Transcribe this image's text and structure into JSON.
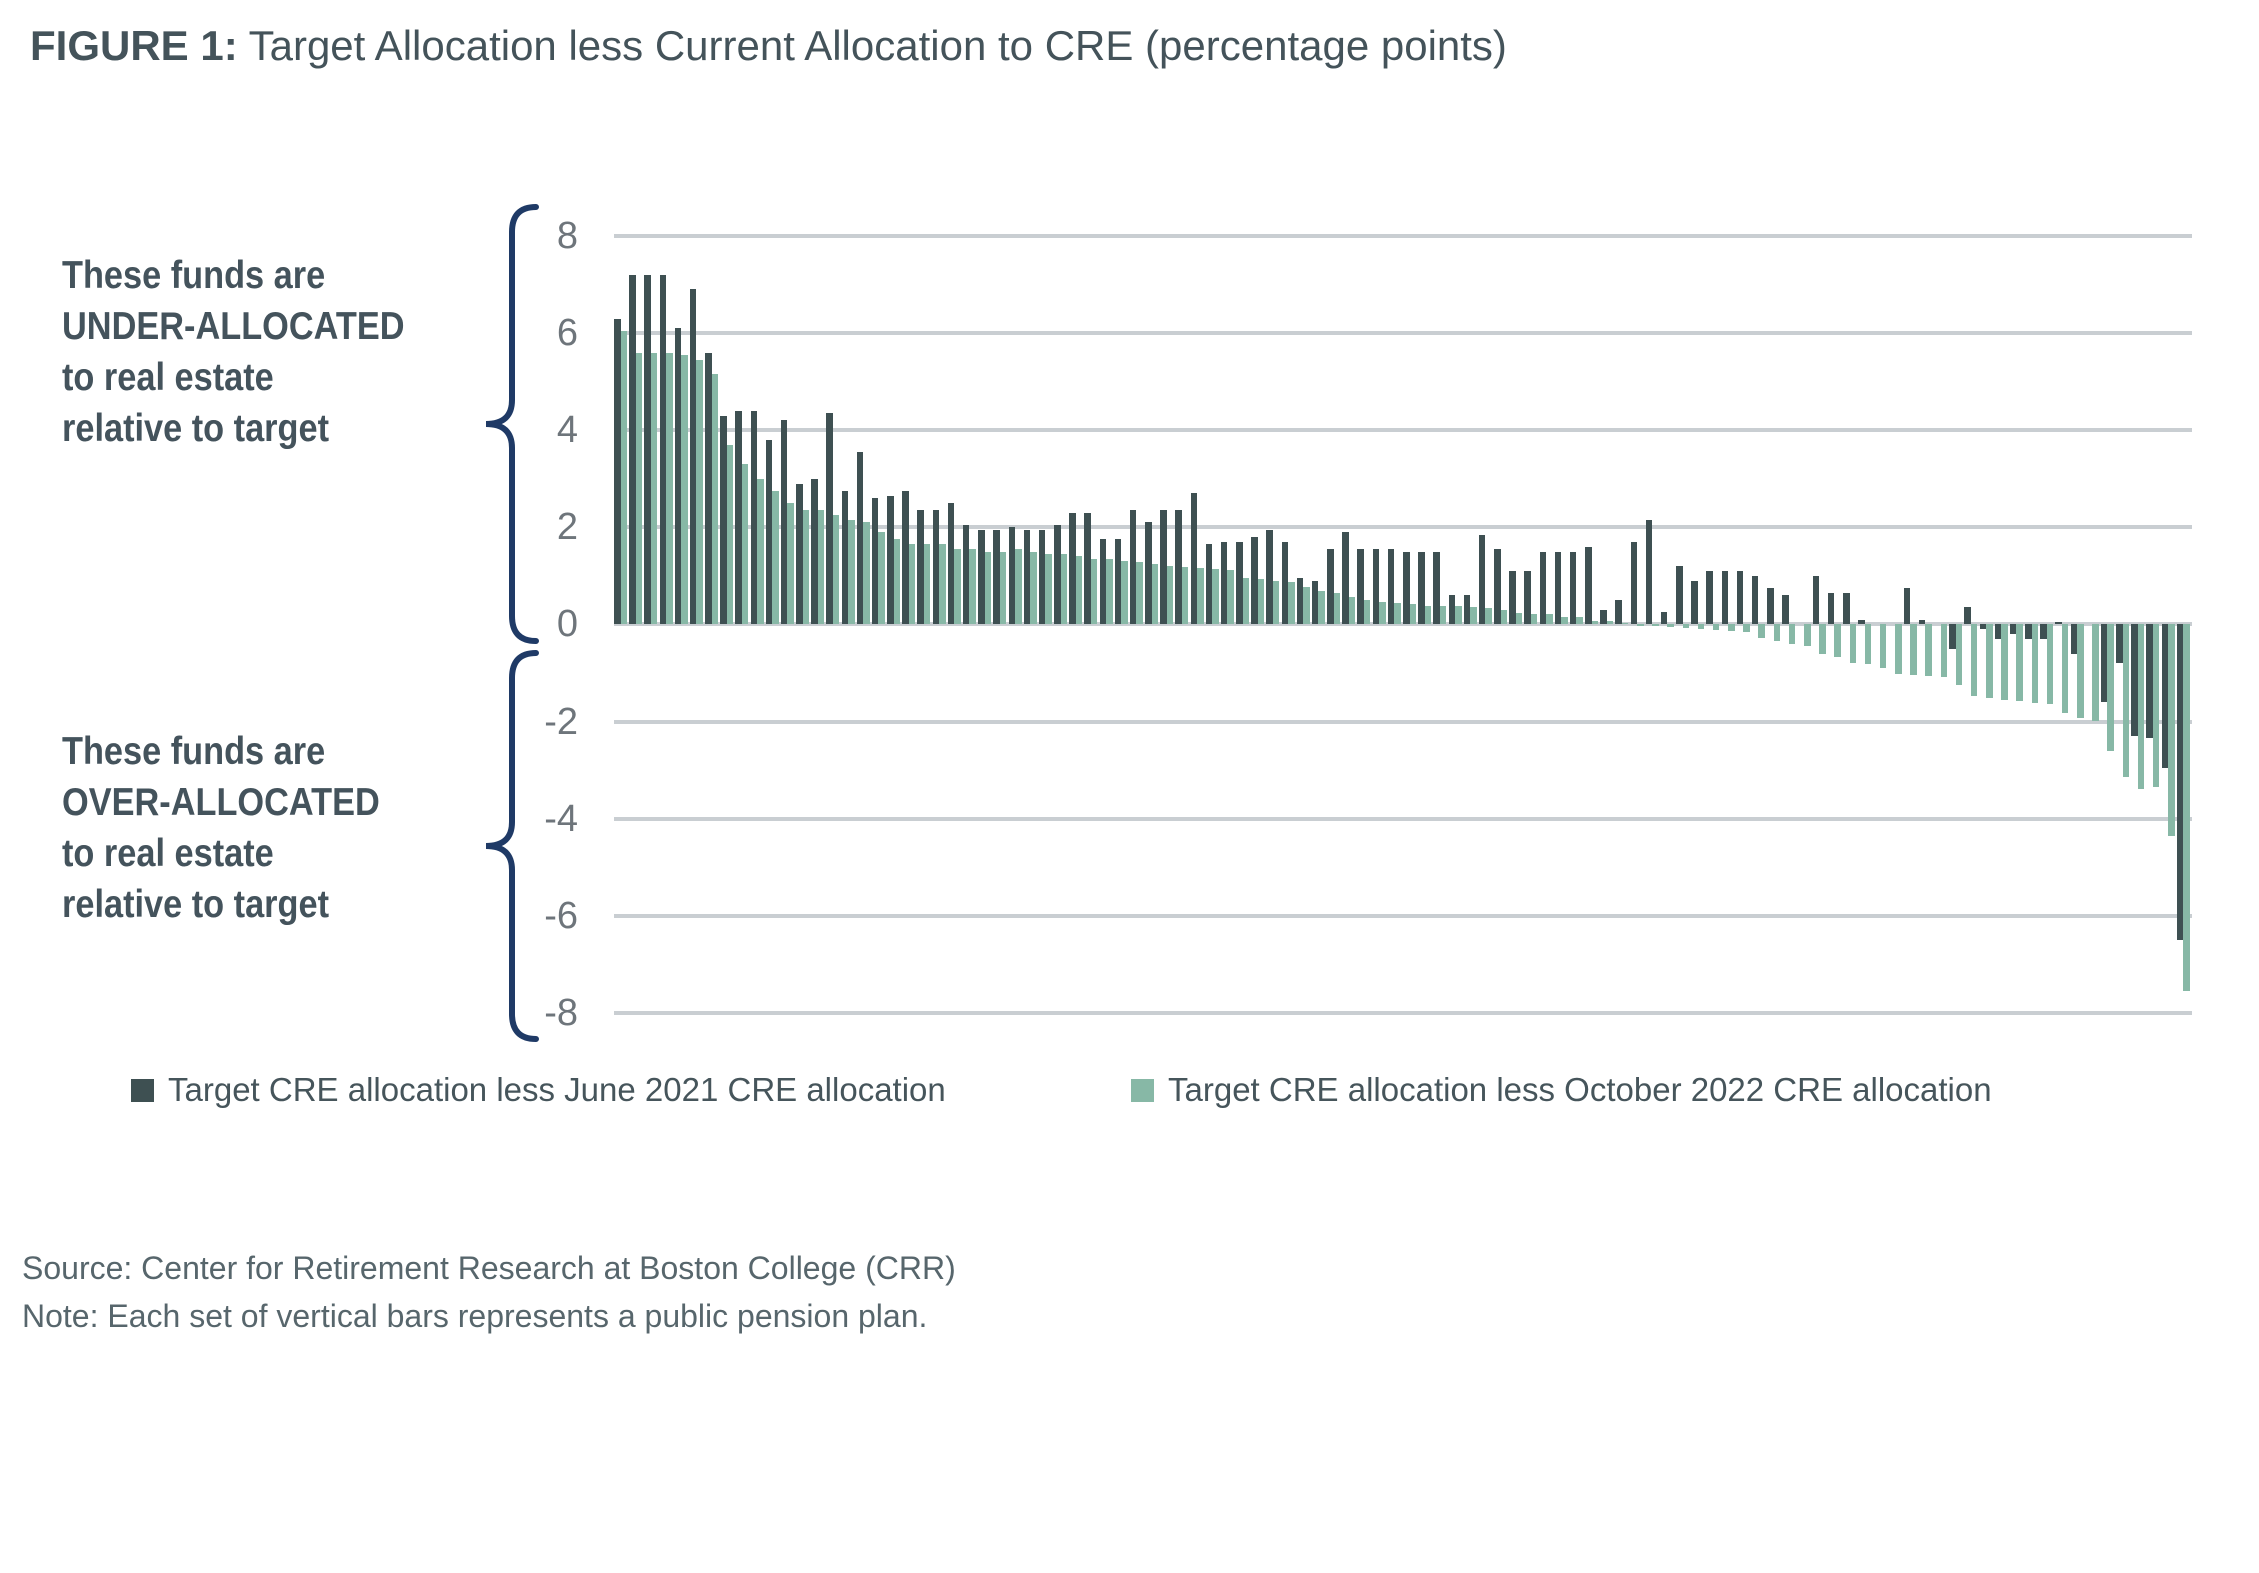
{
  "title": {
    "prefix": "FIGURE 1:",
    "text": " Target Allocation less Current Allocation to CRE (percentage points)"
  },
  "annotations": {
    "upper": {
      "lines": [
        "These funds are",
        "UNDER-ALLOCATED",
        "to real estate",
        "relative to target"
      ]
    },
    "lower": {
      "lines": [
        "These funds are",
        "OVER-ALLOCATED",
        "to real estate",
        "relative to target"
      ]
    }
  },
  "legend": [
    {
      "label": "Target CRE allocation less June 2021 CRE allocation",
      "color": "#3E5052"
    },
    {
      "label": "Target CRE allocation less October 2022 CRE allocation",
      "color": "#87B8A6"
    }
  ],
  "source": "Source: Center for Retirement Research at Boston College (CRR)",
  "note": "Note: Each set of vertical bars represents a public pension plan.",
  "colors": {
    "title_text": "#44535A",
    "annotation_text": "#44535C",
    "brace": "#1F3A66",
    "axis_label": "#6E757B",
    "gridline": "#C9CED2",
    "series_june_2021": "#3E5052",
    "series_october_2022": "#87B8A6",
    "footnote_text": "#57666C"
  },
  "chart_data": {
    "type": "bar",
    "title": "Target Allocation less Current Allocation to CRE (percentage points)",
    "xlabel": "",
    "ylabel": "percentage points",
    "ylim": [
      -8,
      8
    ],
    "yticks": [
      8,
      6,
      4,
      2,
      0,
      -2,
      -4,
      -6,
      -8
    ],
    "grid": true,
    "legend_position": "bottom",
    "x_axis_labels_shown": false,
    "bars_per_group": 2,
    "series": [
      {
        "name": "Target CRE allocation less June 2021 CRE allocation",
        "color": "#3E5052",
        "values": [
          6.3,
          7.2,
          7.2,
          7.2,
          6.1,
          6.9,
          5.6,
          4.3,
          4.4,
          4.4,
          3.8,
          4.2,
          2.9,
          3.0,
          4.35,
          2.75,
          3.55,
          2.6,
          2.65,
          2.75,
          2.35,
          2.35,
          2.5,
          2.05,
          1.95,
          1.95,
          2.0,
          1.95,
          1.95,
          2.05,
          2.3,
          2.3,
          1.75,
          1.75,
          2.35,
          2.1,
          2.35,
          2.35,
          2.7,
          1.65,
          1.7,
          1.7,
          1.8,
          1.95,
          1.7,
          0.95,
          0.9,
          1.55,
          1.9,
          1.55,
          1.55,
          1.55,
          1.5,
          1.5,
          1.5,
          0.6,
          0.6,
          1.85,
          1.55,
          1.1,
          1.1,
          1.5,
          1.5,
          1.5,
          1.6,
          0.3,
          0.5,
          1.7,
          2.15,
          0.25,
          1.2,
          0.9,
          1.1,
          1.1,
          1.1,
          1.0,
          0.75,
          0.6,
          0.0,
          1.0,
          0.65,
          0.65,
          0.1,
          0.0,
          0.0,
          0.75,
          0.1,
          0.0,
          -0.5,
          0.35,
          -0.1,
          -0.3,
          -0.2,
          -0.3,
          -0.3,
          0.05,
          -0.6,
          0.0,
          -1.6,
          -0.8,
          -2.3,
          -2.35,
          -2.95,
          -6.5
        ]
      },
      {
        "name": "Target CRE allocation less October 2022 CRE allocation",
        "color": "#87B8A6",
        "values": [
          6.05,
          5.6,
          5.6,
          5.6,
          5.55,
          5.45,
          5.15,
          3.7,
          3.3,
          3.0,
          2.75,
          2.5,
          2.35,
          2.35,
          2.25,
          2.15,
          2.1,
          1.9,
          1.75,
          1.65,
          1.65,
          1.65,
          1.55,
          1.55,
          1.5,
          1.5,
          1.55,
          1.5,
          1.45,
          1.45,
          1.4,
          1.35,
          1.35,
          1.3,
          1.28,
          1.25,
          1.2,
          1.18,
          1.16,
          1.15,
          1.12,
          0.95,
          0.93,
          0.9,
          0.87,
          0.77,
          0.68,
          0.65,
          0.57,
          0.51,
          0.47,
          0.45,
          0.42,
          0.38,
          0.38,
          0.37,
          0.35,
          0.33,
          0.29,
          0.23,
          0.22,
          0.22,
          0.16,
          0.16,
          0.08,
          0.06,
          0.03,
          -0.03,
          -0.04,
          -0.05,
          -0.08,
          -0.1,
          -0.11,
          -0.14,
          -0.16,
          -0.28,
          -0.35,
          -0.41,
          -0.45,
          -0.62,
          -0.67,
          -0.79,
          -0.81,
          -0.9,
          -1.03,
          -1.04,
          -1.06,
          -1.08,
          -1.25,
          -1.47,
          -1.52,
          -1.56,
          -1.57,
          -1.62,
          -1.64,
          -1.83,
          -1.92,
          -2.0,
          -2.6,
          -3.15,
          -3.4,
          -3.35,
          -4.35,
          -7.55
        ]
      }
    ]
  }
}
